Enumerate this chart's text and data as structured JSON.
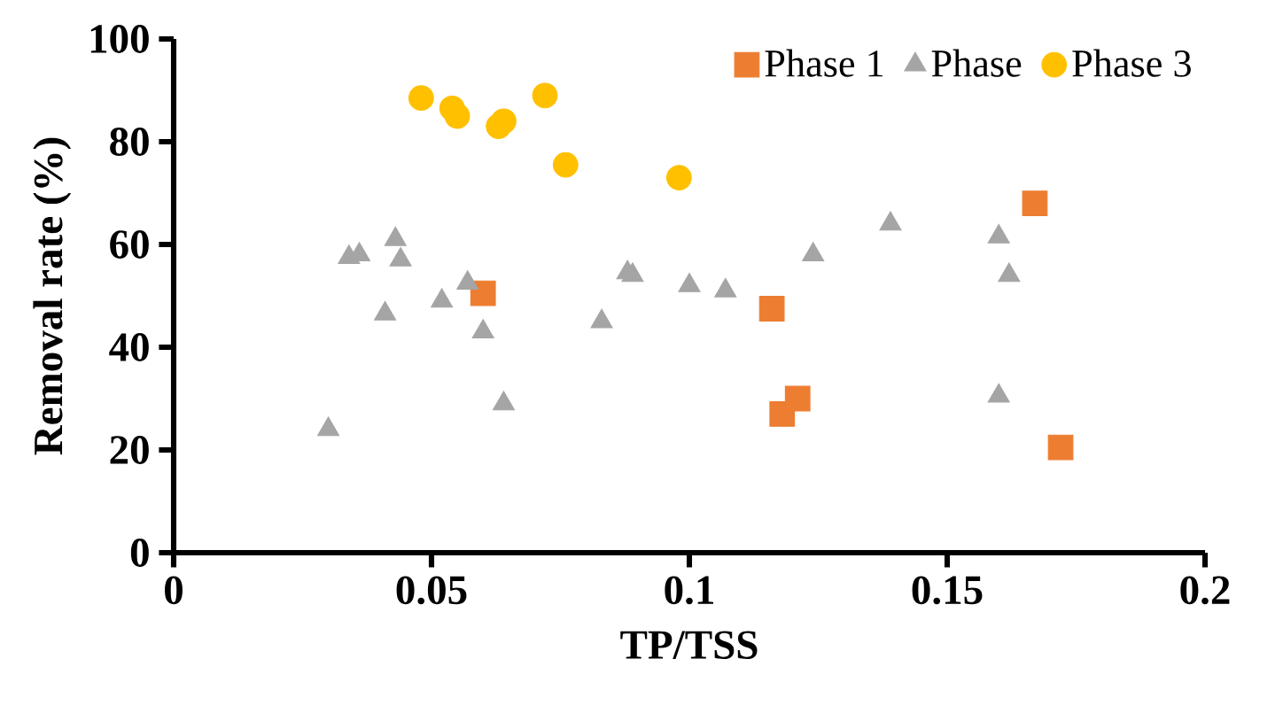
{
  "chart_data": {
    "type": "scatter",
    "xlabel": "TP/TSS",
    "ylabel": "Removal rate (%)",
    "xlim": [
      0,
      0.2
    ],
    "ylim": [
      0,
      100
    ],
    "xticks": [
      0,
      0.05,
      0.1,
      0.15,
      0.2
    ],
    "yticks": [
      0,
      20,
      40,
      60,
      80,
      100
    ],
    "grid": false,
    "legend": "top right",
    "series": [
      {
        "name": "Phase 1",
        "color": "#ed7d31",
        "marker": "square",
        "x": [
          0.06,
          0.116,
          0.118,
          0.121,
          0.167,
          0.172
        ],
        "values": [
          50.5,
          47.5,
          27,
          30,
          68,
          20.5
        ]
      },
      {
        "name": "Phase",
        "color": "#a5a5a5",
        "marker": "triangle",
        "x": [
          0.03,
          0.034,
          0.036,
          0.041,
          0.043,
          0.044,
          0.052,
          0.057,
          0.06,
          0.064,
          0.083,
          0.088,
          0.089,
          0.1,
          0.107,
          0.124,
          0.139,
          0.16,
          0.162,
          0.16
        ],
        "values": [
          24,
          57.5,
          58,
          46.5,
          61,
          57,
          49,
          52.5,
          43,
          29,
          45,
          54.5,
          54,
          52,
          51,
          58,
          64,
          61.5,
          54,
          30.5
        ]
      },
      {
        "name": "Phase 3",
        "color": "#ffc000",
        "marker": "circle",
        "x": [
          0.048,
          0.054,
          0.055,
          0.063,
          0.064,
          0.072,
          0.076,
          0.098
        ],
        "values": [
          88.5,
          86.5,
          85,
          83,
          84,
          89,
          75.5,
          73
        ]
      }
    ]
  }
}
